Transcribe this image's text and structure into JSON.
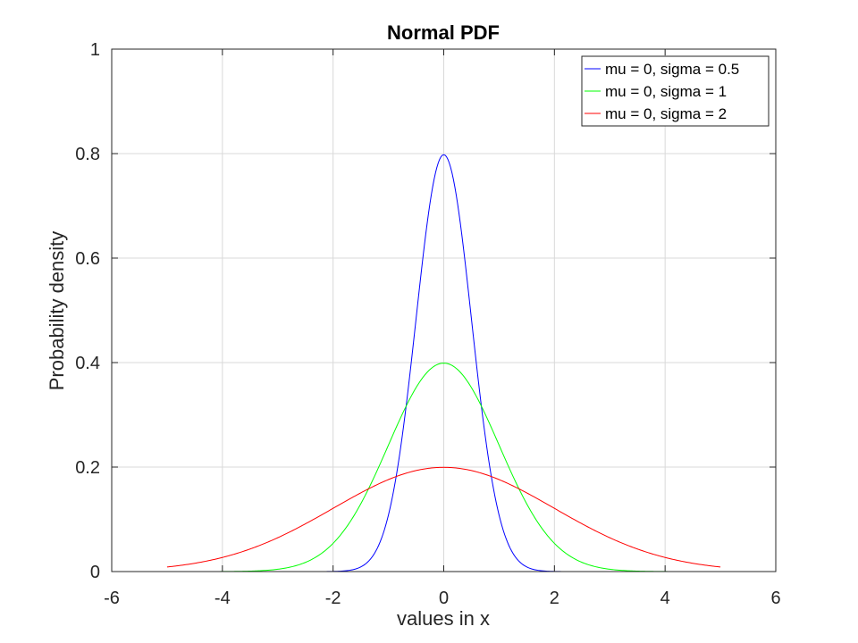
{
  "chart_data": {
    "type": "line",
    "title": "Normal PDF",
    "xlabel": "values in x",
    "ylabel": "Probability density",
    "xlim": [
      -6,
      6
    ],
    "ylim": [
      0,
      1
    ],
    "xticks": [
      -6,
      -4,
      -2,
      0,
      2,
      4,
      6
    ],
    "yticks": [
      0,
      0.2,
      0.4,
      0.6,
      0.8,
      1
    ],
    "xtick_labels": [
      "-6",
      "-4",
      "-2",
      "0",
      "2",
      "4",
      "6"
    ],
    "ytick_labels": [
      "0",
      "0.2",
      "0.4",
      "0.6",
      "0.8",
      "1"
    ],
    "grid": true,
    "legend_position": "top-right",
    "x_range": [
      -5,
      5
    ],
    "series": [
      {
        "name": "mu = 0, sigma = 0.5",
        "mu": 0,
        "sigma": 0.5,
        "color": "#0000ff"
      },
      {
        "name": "mu = 0, sigma = 1",
        "mu": 0,
        "sigma": 1,
        "color": "#00ff00"
      },
      {
        "name": "mu = 0, sigma = 2",
        "mu": 0,
        "sigma": 2,
        "color": "#ff0000"
      }
    ]
  }
}
